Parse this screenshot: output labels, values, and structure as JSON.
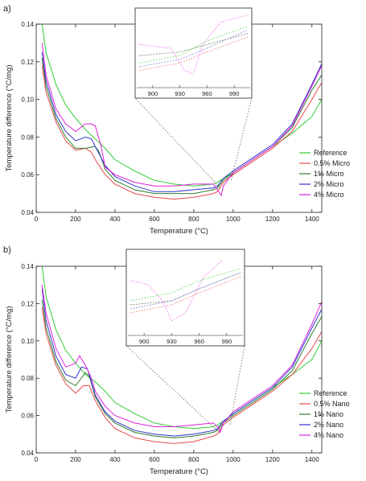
{
  "chart_data": [
    {
      "type": "line",
      "panel_label": "a)",
      "xlabel": "Temperature (°C)",
      "ylabel": "Temperature difference (°C/mg)",
      "xlim": [
        0,
        1450
      ],
      "ylim": [
        0.04,
        0.14
      ],
      "x_ticks": [
        0,
        200,
        400,
        600,
        800,
        1000,
        1200,
        1400
      ],
      "y_ticks": [
        0.04,
        0.06,
        0.08,
        0.1,
        0.12,
        0.14
      ],
      "y_tick_labels": [
        "0.04",
        "0.06",
        "0.08",
        "0.10",
        "0.12",
        "0.14"
      ],
      "legend_position": "bottom-right",
      "grid": false,
      "series": [
        {
          "name": "Reference",
          "color": "#33cc33",
          "x": [
            30,
            50,
            100,
            150,
            200,
            250,
            300,
            350,
            400,
            500,
            600,
            700,
            800,
            900,
            920,
            950,
            1000,
            1100,
            1200,
            1300,
            1400,
            1450
          ],
          "y": [
            0.14,
            0.125,
            0.108,
            0.097,
            0.09,
            0.084,
            0.079,
            0.074,
            0.068,
            0.062,
            0.057,
            0.055,
            0.054,
            0.055,
            0.056,
            0.058,
            0.061,
            0.068,
            0.075,
            0.082,
            0.091,
            0.1
          ]
        },
        {
          "name": "0.5% Micro",
          "color": "#e84a4a",
          "x": [
            30,
            50,
            100,
            150,
            200,
            250,
            280,
            300,
            350,
            400,
            500,
            600,
            700,
            800,
            900,
            920,
            950,
            1000,
            1100,
            1200,
            1300,
            1400,
            1450
          ],
          "y": [
            0.118,
            0.104,
            0.088,
            0.078,
            0.073,
            0.074,
            0.072,
            0.068,
            0.06,
            0.055,
            0.05,
            0.048,
            0.047,
            0.048,
            0.05,
            0.051,
            0.056,
            0.06,
            0.067,
            0.074,
            0.083,
            0.1,
            0.109
          ]
        },
        {
          "name": "1% Micro",
          "color": "#2e7d32",
          "x": [
            30,
            50,
            100,
            150,
            200,
            250,
            300,
            320,
            350,
            400,
            500,
            600,
            700,
            800,
            900,
            920,
            950,
            1000,
            1100,
            1200,
            1300,
            1400,
            1450
          ],
          "y": [
            0.122,
            0.107,
            0.09,
            0.08,
            0.074,
            0.074,
            0.075,
            0.072,
            0.063,
            0.057,
            0.052,
            0.05,
            0.05,
            0.05,
            0.052,
            0.053,
            0.057,
            0.061,
            0.068,
            0.075,
            0.085,
            0.105,
            0.113
          ]
        },
        {
          "name": "2% Micro",
          "color": "#3333cc",
          "x": [
            30,
            50,
            100,
            150,
            200,
            250,
            280,
            300,
            350,
            400,
            500,
            600,
            700,
            800,
            900,
            920,
            950,
            1000,
            1100,
            1200,
            1300,
            1400,
            1450
          ],
          "y": [
            0.125,
            0.11,
            0.092,
            0.083,
            0.078,
            0.08,
            0.079,
            0.075,
            0.065,
            0.059,
            0.054,
            0.051,
            0.051,
            0.052,
            0.053,
            0.054,
            0.058,
            0.062,
            0.069,
            0.076,
            0.087,
            0.108,
            0.119
          ]
        },
        {
          "name": "4% Micro",
          "color": "#dd22dd",
          "x": [
            30,
            50,
            100,
            150,
            200,
            250,
            280,
            300,
            330,
            350,
            400,
            500,
            600,
            700,
            800,
            900,
            920,
            940,
            950,
            1000,
            1100,
            1200,
            1300,
            1400,
            1450
          ],
          "y": [
            0.13,
            0.113,
            0.095,
            0.087,
            0.083,
            0.087,
            0.087,
            0.086,
            0.075,
            0.064,
            0.06,
            0.056,
            0.054,
            0.054,
            0.055,
            0.055,
            0.052,
            0.049,
            0.054,
            0.061,
            0.068,
            0.075,
            0.086,
            0.107,
            0.118
          ]
        }
      ],
      "inset": {
        "x_ticks": [
          900,
          930,
          960,
          990
        ],
        "xlim": [
          885,
          1005
        ],
        "ylim": [
          0.044,
          0.064
        ],
        "series": [
          {
            "name": "Reference",
            "color": "#77dd77",
            "x": [
              885,
              930,
              960,
              1005
            ],
            "y": [
              0.05,
              0.052,
              0.056,
              0.06
            ]
          },
          {
            "name": "0.5% Micro",
            "color": "#ee8888",
            "x": [
              885,
              930,
              960,
              1005
            ],
            "y": [
              0.048,
              0.05,
              0.053,
              0.057
            ]
          },
          {
            "name": "1% Micro",
            "color": "#668866",
            "x": [
              885,
              930,
              960,
              1005
            ],
            "y": [
              0.052,
              0.053,
              0.055,
              0.058
            ]
          },
          {
            "name": "2% Micro",
            "color": "#8888dd",
            "x": [
              885,
              930,
              960,
              1005
            ],
            "y": [
              0.049,
              0.051,
              0.054,
              0.059
            ]
          },
          {
            "name": "4% Micro",
            "color": "#ee77ee",
            "x": [
              885,
              920,
              935,
              945,
              955,
              975,
              1005
            ],
            "y": [
              0.055,
              0.054,
              0.048,
              0.047,
              0.055,
              0.061,
              0.063
            ]
          }
        ]
      }
    },
    {
      "type": "line",
      "panel_label": "b)",
      "xlabel": "Temperature (°C)",
      "ylabel": "Temperature difference (°C/mg)",
      "xlim": [
        0,
        1450
      ],
      "ylim": [
        0.04,
        0.14
      ],
      "x_ticks": [
        0,
        200,
        400,
        600,
        800,
        1000,
        1200,
        1400
      ],
      "y_ticks": [
        0.04,
        0.06,
        0.08,
        0.1,
        0.12,
        0.14
      ],
      "y_tick_labels": [
        "0.04",
        "0.06",
        "0.08",
        "0.10",
        "0.12",
        "0.14"
      ],
      "legend_position": "bottom-right",
      "grid": false,
      "series": [
        {
          "name": "Reference",
          "color": "#33cc33",
          "x": [
            30,
            50,
            100,
            150,
            200,
            250,
            300,
            350,
            400,
            500,
            600,
            700,
            800,
            900,
            920,
            950,
            1000,
            1100,
            1200,
            1300,
            1400,
            1450
          ],
          "y": [
            0.14,
            0.124,
            0.106,
            0.095,
            0.088,
            0.082,
            0.078,
            0.073,
            0.067,
            0.061,
            0.056,
            0.054,
            0.053,
            0.054,
            0.055,
            0.057,
            0.061,
            0.068,
            0.075,
            0.082,
            0.09,
            0.1
          ]
        },
        {
          "name": "0.5% Nano",
          "color": "#e84a4a",
          "x": [
            30,
            50,
            100,
            150,
            200,
            240,
            270,
            300,
            350,
            400,
            500,
            600,
            700,
            800,
            900,
            920,
            950,
            1000,
            1100,
            1200,
            1300,
            1400,
            1450
          ],
          "y": [
            0.118,
            0.104,
            0.087,
            0.077,
            0.072,
            0.076,
            0.076,
            0.068,
            0.059,
            0.053,
            0.048,
            0.046,
            0.045,
            0.046,
            0.049,
            0.05,
            0.055,
            0.059,
            0.066,
            0.073,
            0.082,
            0.096,
            0.105
          ]
        },
        {
          "name": "1% Nano",
          "color": "#2e7d32",
          "x": [
            30,
            50,
            100,
            150,
            200,
            250,
            270,
            300,
            350,
            400,
            500,
            600,
            700,
            800,
            900,
            920,
            950,
            1000,
            1100,
            1200,
            1300,
            1400,
            1450
          ],
          "y": [
            0.122,
            0.107,
            0.089,
            0.079,
            0.076,
            0.083,
            0.081,
            0.07,
            0.061,
            0.056,
            0.051,
            0.049,
            0.048,
            0.049,
            0.051,
            0.052,
            0.056,
            0.06,
            0.067,
            0.074,
            0.084,
            0.104,
            0.113
          ]
        },
        {
          "name": "2% Nano",
          "color": "#3333cc",
          "x": [
            30,
            50,
            100,
            150,
            200,
            230,
            260,
            300,
            350,
            400,
            500,
            600,
            700,
            800,
            900,
            920,
            950,
            1000,
            1100,
            1200,
            1300,
            1400,
            1450
          ],
          "y": [
            0.128,
            0.111,
            0.092,
            0.082,
            0.08,
            0.086,
            0.085,
            0.071,
            0.062,
            0.057,
            0.052,
            0.05,
            0.049,
            0.05,
            0.052,
            0.053,
            0.057,
            0.061,
            0.068,
            0.075,
            0.086,
            0.107,
            0.117
          ]
        },
        {
          "name": "4% Nano",
          "color": "#dd22dd",
          "x": [
            30,
            50,
            100,
            150,
            200,
            220,
            250,
            280,
            300,
            350,
            400,
            500,
            600,
            700,
            800,
            900,
            920,
            935,
            950,
            1000,
            1100,
            1200,
            1300,
            1400,
            1450
          ],
          "y": [
            0.13,
            0.115,
            0.096,
            0.086,
            0.088,
            0.092,
            0.087,
            0.08,
            0.073,
            0.065,
            0.06,
            0.056,
            0.054,
            0.054,
            0.055,
            0.056,
            0.054,
            0.051,
            0.056,
            0.062,
            0.069,
            0.076,
            0.087,
            0.109,
            0.121
          ]
        }
      ],
      "inset": {
        "x_ticks": [
          900,
          930,
          960,
          990
        ],
        "xlim": [
          885,
          1005
        ],
        "ylim": [
          0.044,
          0.064
        ],
        "series": [
          {
            "name": "Reference",
            "color": "#77dd77",
            "x": [
              885,
              930,
              960,
              1005
            ],
            "y": [
              0.052,
              0.054,
              0.057,
              0.06
            ]
          },
          {
            "name": "0.5% Nano",
            "color": "#ee8888",
            "x": [
              885,
              930,
              960,
              1005
            ],
            "y": [
              0.049,
              0.051,
              0.054,
              0.058
            ]
          },
          {
            "name": "1% Nano",
            "color": "#668866",
            "x": [
              885,
              930,
              960,
              1005
            ],
            "y": [
              0.051,
              0.052,
              0.055,
              0.059
            ]
          },
          {
            "name": "2% Nano",
            "color": "#8888dd",
            "x": [
              885,
              930,
              960,
              1005
            ],
            "y": [
              0.05,
              0.052,
              0.055,
              0.059
            ]
          },
          {
            "name": "4% Nano",
            "color": "#ee77ee",
            "x": [
              885,
              905,
              920,
              930,
              945,
              965,
              985
            ],
            "y": [
              0.057,
              0.056,
              0.052,
              0.047,
              0.049,
              0.058,
              0.062
            ]
          }
        ]
      }
    }
  ]
}
